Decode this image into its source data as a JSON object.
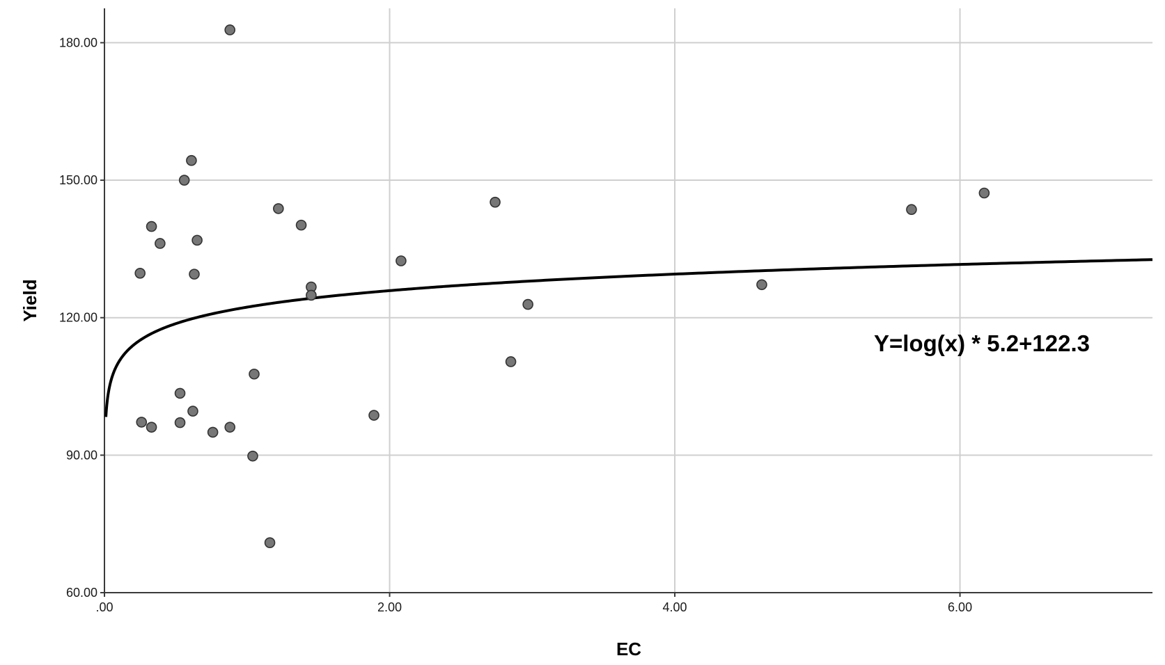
{
  "chart_data": {
    "type": "scatter",
    "xlabel": "EC",
    "ylabel": "Yield",
    "xlim": [
      0,
      7.35
    ],
    "ylim": [
      60,
      187.5
    ],
    "x_ticks": [
      0,
      2,
      4,
      6
    ],
    "x_tick_labels": [
      ".00",
      "2.00",
      "4.00",
      "6.00"
    ],
    "y_ticks": [
      60,
      90,
      120,
      150,
      180
    ],
    "y_tick_labels": [
      "60.00",
      "90.00",
      "120.00",
      "150.00",
      "180.00"
    ],
    "grid": true,
    "point_color": "#777777",
    "curve_color": "#000000",
    "points": [
      {
        "x": 0.25,
        "y": 129.7
      },
      {
        "x": 0.26,
        "y": 97.2
      },
      {
        "x": 0.33,
        "y": 139.9
      },
      {
        "x": 0.33,
        "y": 96.1
      },
      {
        "x": 0.39,
        "y": 136.2
      },
      {
        "x": 0.53,
        "y": 103.5
      },
      {
        "x": 0.53,
        "y": 97.1
      },
      {
        "x": 0.56,
        "y": 150.0
      },
      {
        "x": 0.61,
        "y": 154.3
      },
      {
        "x": 0.62,
        "y": 99.6
      },
      {
        "x": 0.63,
        "y": 129.5
      },
      {
        "x": 0.65,
        "y": 136.9
      },
      {
        "x": 0.76,
        "y": 95.0
      },
      {
        "x": 0.88,
        "y": 182.8
      },
      {
        "x": 0.88,
        "y": 96.1
      },
      {
        "x": 1.04,
        "y": 89.8
      },
      {
        "x": 1.05,
        "y": 107.7
      },
      {
        "x": 1.16,
        "y": 70.9
      },
      {
        "x": 1.22,
        "y": 143.8
      },
      {
        "x": 1.38,
        "y": 140.2
      },
      {
        "x": 1.45,
        "y": 126.7
      },
      {
        "x": 1.45,
        "y": 124.9
      },
      {
        "x": 1.89,
        "y": 98.7
      },
      {
        "x": 2.08,
        "y": 132.4
      },
      {
        "x": 2.74,
        "y": 145.2
      },
      {
        "x": 2.85,
        "y": 110.4
      },
      {
        "x": 2.97,
        "y": 122.9
      },
      {
        "x": 4.61,
        "y": 127.2
      },
      {
        "x": 5.66,
        "y": 143.6
      },
      {
        "x": 6.17,
        "y": 147.2
      }
    ],
    "fit": {
      "label": "Y=log(x) * 5.2+122.3",
      "intercept": 122.3,
      "coefficient": 5.2,
      "x_start": 0.01,
      "x_end": 7.35
    }
  }
}
